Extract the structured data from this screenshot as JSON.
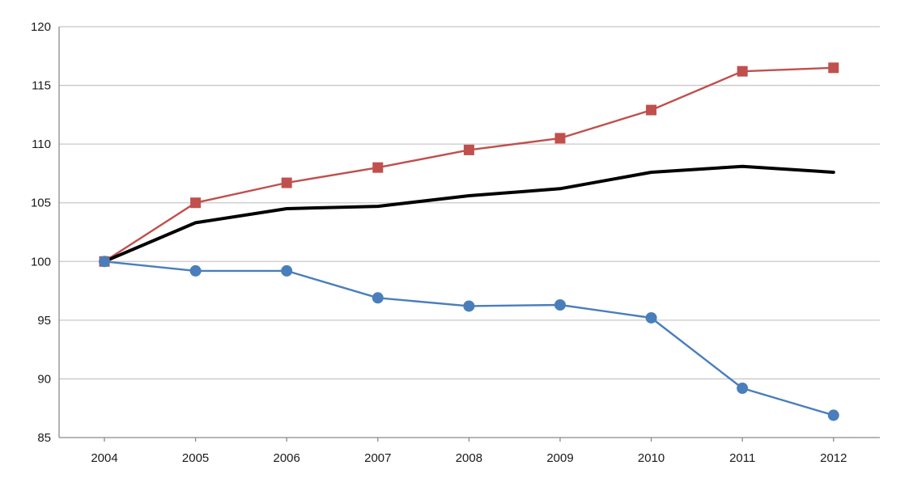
{
  "chart_data": {
    "type": "line",
    "categories": [
      "2004",
      "2005",
      "2006",
      "2007",
      "2008",
      "2009",
      "2010",
      "2011",
      "2012"
    ],
    "series": [
      {
        "key": "red-square",
        "color": "#c0504d",
        "marker": "square",
        "line_width": "thin",
        "values": [
          100,
          105,
          106.7,
          108,
          109.5,
          110.5,
          112.9,
          116.2,
          116.5
        ]
      },
      {
        "key": "black",
        "color": "#000000",
        "marker": "none",
        "line_width": "thick",
        "values": [
          100,
          103.3,
          104.5,
          104.7,
          105.6,
          106.2,
          107.6,
          108.1,
          107.6
        ]
      },
      {
        "key": "blue-circle",
        "color": "#4a7ebb",
        "marker": "circle",
        "line_width": "thin",
        "values": [
          100,
          99.2,
          99.2,
          96.9,
          96.2,
          96.3,
          95.2,
          89.2,
          86.9
        ]
      }
    ],
    "ylim": [
      85,
      120
    ],
    "yticks": [
      "85",
      "90",
      "95",
      "100",
      "105",
      "110",
      "115",
      "120"
    ],
    "grid": true,
    "legend": "none",
    "title": "",
    "xlabel": "",
    "ylabel": ""
  }
}
